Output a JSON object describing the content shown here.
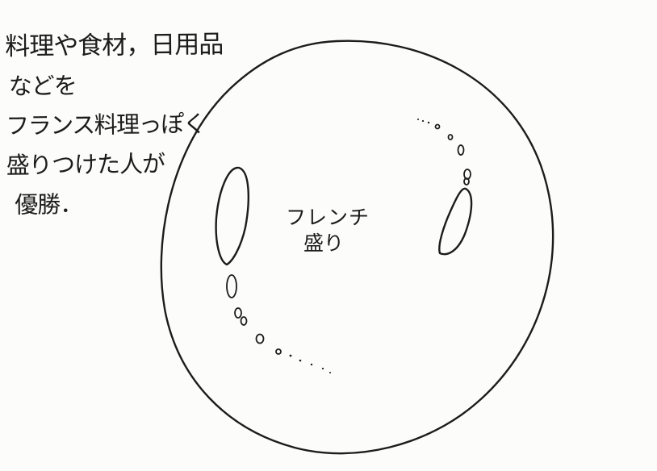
{
  "note": {
    "lines": [
      "料理や食材，日用品",
      "などを",
      "フランス料理っぽく",
      "盛りつけた人が",
      "優勝．"
    ]
  },
  "plate": {
    "label_lines": [
      "フレンチ",
      "盛り"
    ]
  },
  "colors": {
    "paper": "#fcfcfa",
    "ink": "#1c1c1c"
  }
}
